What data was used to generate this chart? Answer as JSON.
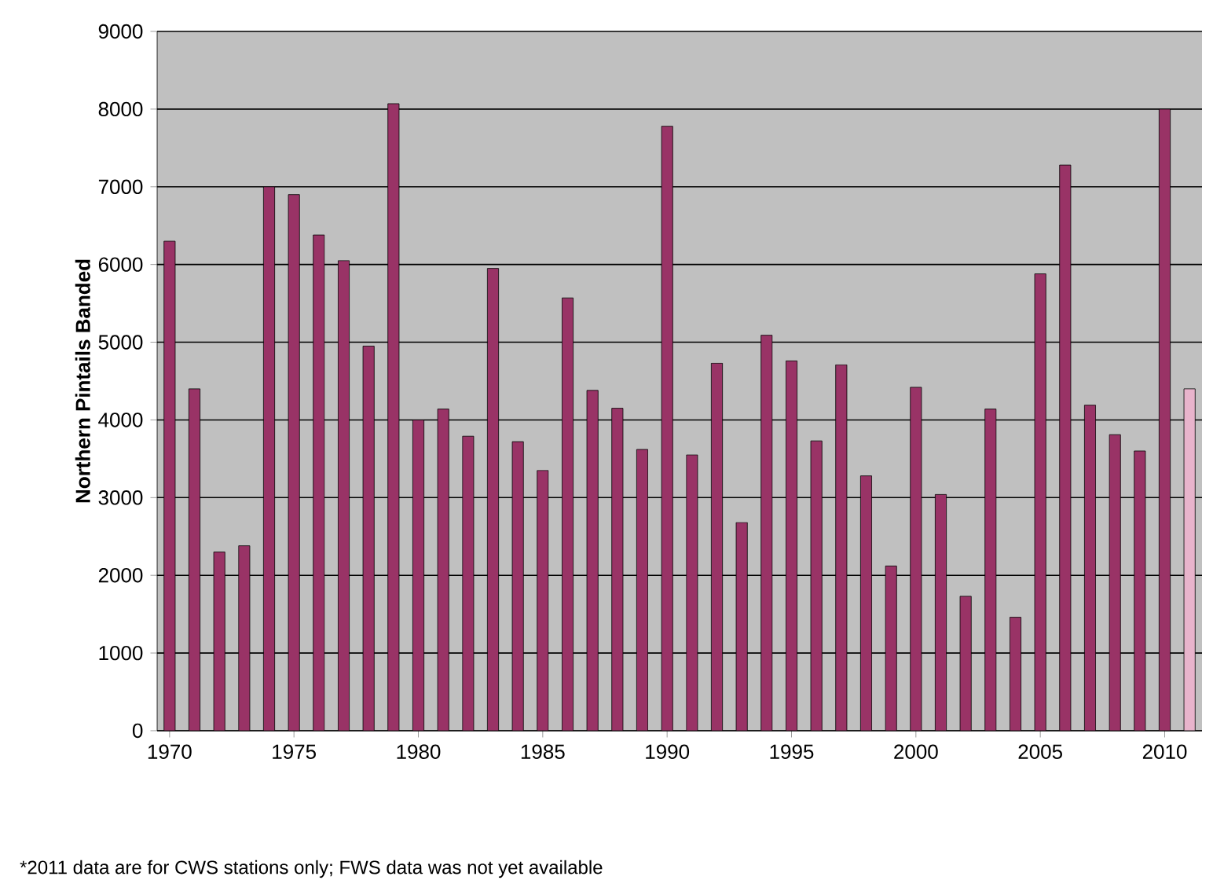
{
  "chart_data": {
    "type": "bar",
    "ylabel": "Northern Pintails Banded",
    "x": [
      1970,
      1971,
      1972,
      1973,
      1974,
      1975,
      1976,
      1977,
      1978,
      1979,
      1980,
      1981,
      1982,
      1983,
      1984,
      1985,
      1986,
      1987,
      1988,
      1989,
      1990,
      1991,
      1992,
      1993,
      1994,
      1995,
      1996,
      1997,
      1998,
      1999,
      2000,
      2001,
      2002,
      2003,
      2004,
      2005,
      2006,
      2007,
      2008,
      2009,
      2010,
      2011
    ],
    "values": [
      6300,
      4400,
      2300,
      2380,
      7000,
      6900,
      6380,
      6050,
      4950,
      8070,
      4000,
      4140,
      3790,
      5950,
      3720,
      3350,
      5570,
      4380,
      4150,
      3620,
      7780,
      3550,
      4730,
      2680,
      5090,
      4760,
      3730,
      4710,
      3280,
      2120,
      4420,
      3040,
      1730,
      4140,
      1460,
      5880,
      7280,
      4190,
      3810,
      3600,
      8000,
      4400
    ],
    "colors": [
      "#993366",
      "#993366",
      "#993366",
      "#993366",
      "#993366",
      "#993366",
      "#993366",
      "#993366",
      "#993366",
      "#993366",
      "#993366",
      "#993366",
      "#993366",
      "#993366",
      "#993366",
      "#993366",
      "#993366",
      "#993366",
      "#993366",
      "#993366",
      "#993366",
      "#993366",
      "#993366",
      "#993366",
      "#993366",
      "#993366",
      "#993366",
      "#993366",
      "#993366",
      "#993366",
      "#993366",
      "#993366",
      "#993366",
      "#993366",
      "#993366",
      "#993366",
      "#993366",
      "#993366",
      "#993366",
      "#993366",
      "#993366",
      "#e8b4cc"
    ],
    "xlim": [
      1969.5,
      2011.5
    ],
    "xticks": [
      1970,
      1975,
      1980,
      1985,
      1990,
      1995,
      2000,
      2005,
      2010
    ],
    "ylim": [
      0,
      9000
    ],
    "yticks": [
      0,
      1000,
      2000,
      3000,
      4000,
      5000,
      6000,
      7000,
      8000,
      9000
    ],
    "grid": "y",
    "annotations": [
      "*2011 data are for CWS stations only; FWS data was not yet available"
    ]
  }
}
